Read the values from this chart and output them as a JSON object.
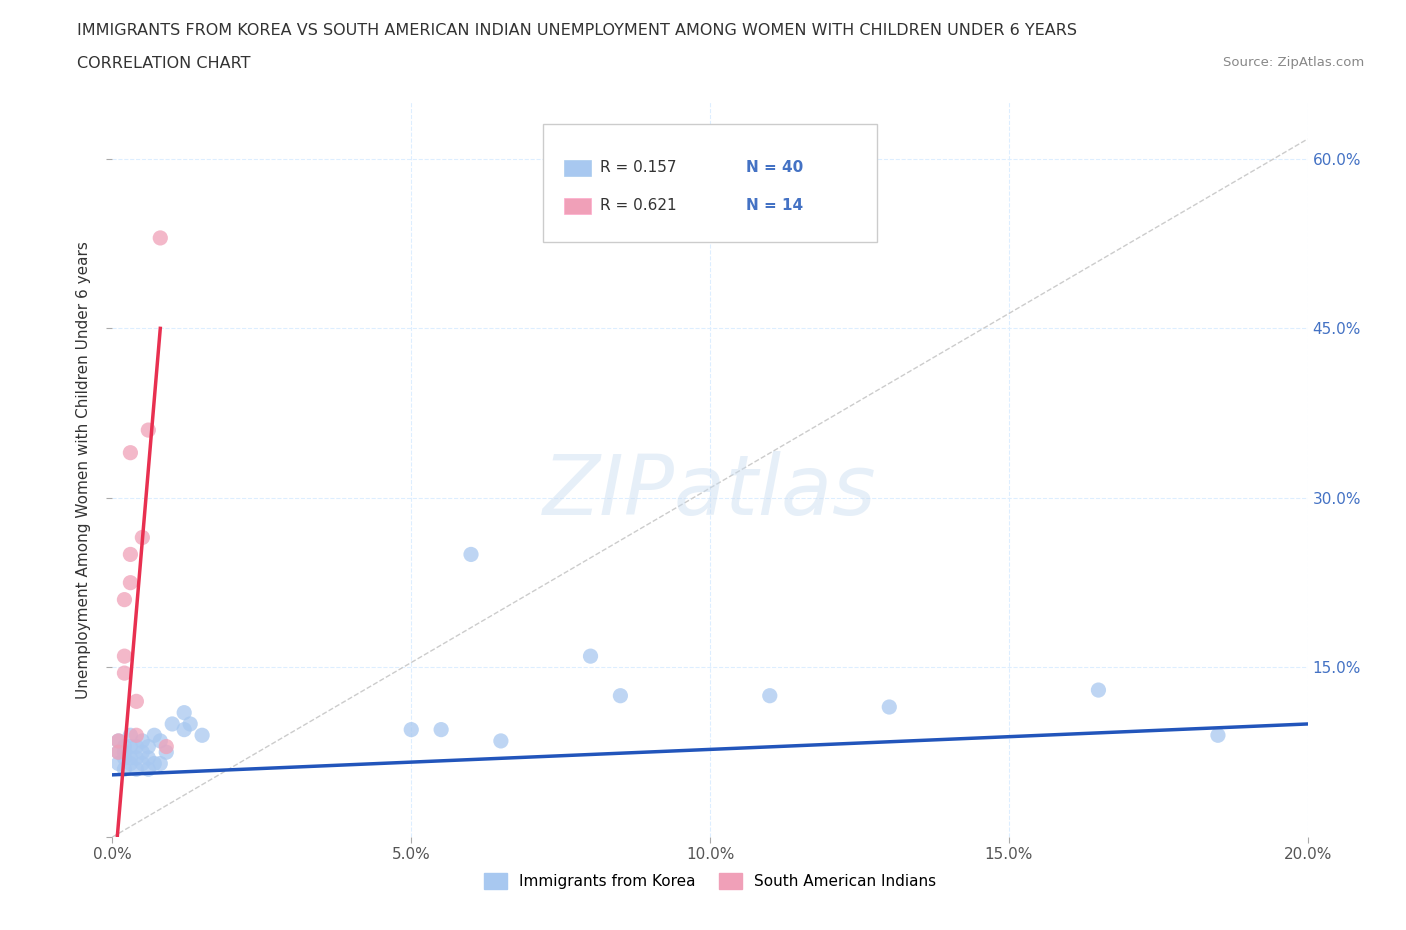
{
  "title_line1": "IMMIGRANTS FROM KOREA VS SOUTH AMERICAN INDIAN UNEMPLOYMENT AMONG WOMEN WITH CHILDREN UNDER 6 YEARS",
  "title_line2": "CORRELATION CHART",
  "source_text": "Source: ZipAtlas.com",
  "ylabel": "Unemployment Among Women with Children Under 6 years",
  "xlim": [
    0.0,
    0.2
  ],
  "ylim": [
    0.0,
    0.65
  ],
  "xticks": [
    0.0,
    0.05,
    0.1,
    0.15,
    0.2
  ],
  "yticks": [
    0.0,
    0.15,
    0.3,
    0.45,
    0.6
  ],
  "xtick_labels": [
    "0.0%",
    "5.0%",
    "10.0%",
    "15.0%",
    "20.0%"
  ],
  "right_ytick_labels": [
    "",
    "15.0%",
    "30.0%",
    "45.0%",
    "60.0%"
  ],
  "blue_color": "#A8C8F0",
  "pink_color": "#F0A0B8",
  "blue_line_color": "#2255BB",
  "pink_line_color": "#E83050",
  "diag_color": "#CCCCCC",
  "watermark": "ZIPatlas",
  "legend_R1": "R = 0.157",
  "legend_N1": "N = 40",
  "legend_R2": "R = 0.621",
  "legend_N2": "N = 14",
  "legend_label1": "Immigrants from Korea",
  "legend_label2": "South American Indians",
  "korea_x": [
    0.001,
    0.001,
    0.001,
    0.002,
    0.002,
    0.002,
    0.002,
    0.003,
    0.003,
    0.003,
    0.003,
    0.004,
    0.004,
    0.004,
    0.005,
    0.005,
    0.005,
    0.006,
    0.006,
    0.006,
    0.007,
    0.007,
    0.008,
    0.008,
    0.009,
    0.01,
    0.012,
    0.012,
    0.013,
    0.015,
    0.05,
    0.055,
    0.06,
    0.065,
    0.08,
    0.085,
    0.11,
    0.13,
    0.165,
    0.185
  ],
  "korea_y": [
    0.065,
    0.075,
    0.085,
    0.06,
    0.07,
    0.075,
    0.08,
    0.065,
    0.07,
    0.08,
    0.09,
    0.06,
    0.07,
    0.08,
    0.065,
    0.075,
    0.085,
    0.06,
    0.07,
    0.08,
    0.065,
    0.09,
    0.065,
    0.085,
    0.075,
    0.1,
    0.095,
    0.11,
    0.1,
    0.09,
    0.095,
    0.095,
    0.25,
    0.085,
    0.16,
    0.125,
    0.125,
    0.115,
    0.13,
    0.09
  ],
  "sa_x": [
    0.001,
    0.001,
    0.002,
    0.002,
    0.002,
    0.003,
    0.003,
    0.003,
    0.004,
    0.004,
    0.005,
    0.006,
    0.008,
    0.009
  ],
  "sa_y": [
    0.075,
    0.085,
    0.145,
    0.16,
    0.21,
    0.225,
    0.25,
    0.34,
    0.09,
    0.12,
    0.265,
    0.36,
    0.53,
    0.08
  ],
  "background_color": "#FFFFFF",
  "grid_color": "#DDEEFF"
}
